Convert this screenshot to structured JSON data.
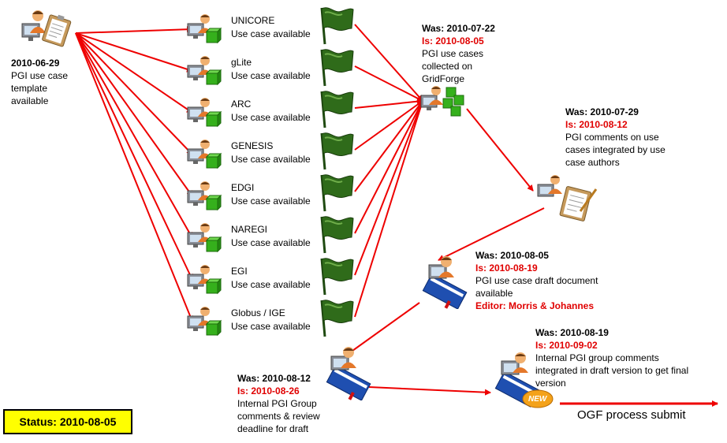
{
  "start": {
    "date": "2010-06-29",
    "text": "PGI use case template available"
  },
  "use_cases": [
    {
      "name": "UNICORE",
      "status": "Use case available"
    },
    {
      "name": "gLite",
      "status": "Use case available"
    },
    {
      "name": "ARC",
      "status": "Use case available"
    },
    {
      "name": "GENESIS",
      "status": "Use case available"
    },
    {
      "name": "EDGI",
      "status": "Use case available"
    },
    {
      "name": "NAREGI",
      "status": "Use case available"
    },
    {
      "name": "EGI",
      "status": "Use case available"
    },
    {
      "name": "Globus / IGE",
      "status": "Use case available"
    }
  ],
  "collected": {
    "was": "Was: 2010-07-22",
    "is": "Is: 2010-08-05",
    "text": "PGI use cases collected on GridForge"
  },
  "comments": {
    "was": "Was: 2010-07-29",
    "is": "Is: 2010-08-12",
    "text": "PGI comments on use cases integrated by use case authors"
  },
  "draft": {
    "was": "Was: 2010-08-05",
    "is": "Is: 2010-08-19",
    "text": "PGI use case draft document available",
    "editor": "Editor: Morris & Johannes"
  },
  "review": {
    "was": "Was: 2010-08-12",
    "is": "Is: 2010-08-26",
    "text": "Internal PGI Group comments & review deadline for draft"
  },
  "final": {
    "was": "Was: 2010-08-19",
    "is": "Is: 2010-09-02",
    "text": "Internal PGI group comments integrated in draft version to get final version",
    "badge": "NEW"
  },
  "status": "Status: 2010-08-05",
  "ogf": "OGF process submit",
  "colors": {
    "arrow": "#ee0000",
    "flag": "#2f6b1a",
    "cube": "#35b01c",
    "book": "#1f4fb0",
    "status_bg": "#ffff00",
    "is_text": "#e00000"
  }
}
